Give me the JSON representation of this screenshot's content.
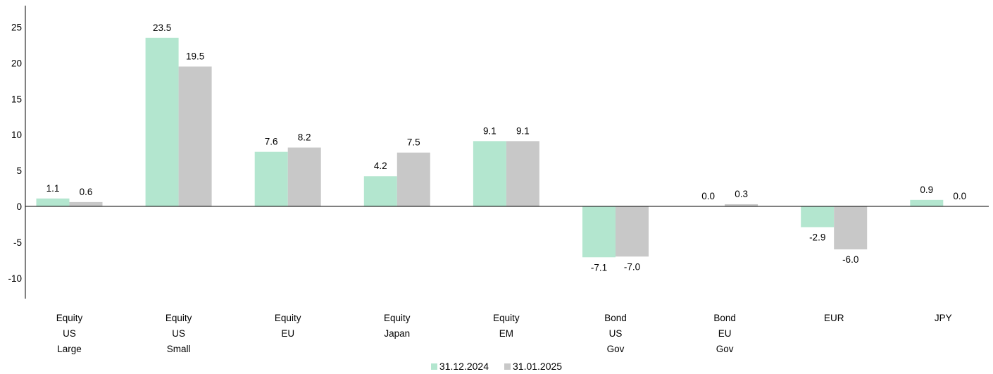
{
  "chart_data": {
    "type": "bar",
    "categories": [
      [
        "Equity",
        "US",
        "Large"
      ],
      [
        "Equity",
        "US",
        "Small"
      ],
      [
        "Equity",
        "EU"
      ],
      [
        "Equity",
        "Japan"
      ],
      [
        "Equity",
        "EM"
      ],
      [
        "Bond",
        "US",
        "Gov"
      ],
      [
        "Bond",
        "EU",
        "Gov"
      ],
      [
        "EUR"
      ],
      [
        "JPY"
      ]
    ],
    "series": [
      {
        "name": "31.12.2024",
        "color": "#b3e6cf",
        "values": [
          1.1,
          23.5,
          7.6,
          4.2,
          9.1,
          -7.1,
          0.0,
          -2.9,
          0.9
        ],
        "labels": [
          "1.1",
          "23.5",
          "7.6",
          "4.2",
          "9.1",
          "-7.1",
          "0.0",
          "-2.9",
          "0.9"
        ]
      },
      {
        "name": "31.01.2025",
        "color": "#c8c8c8",
        "values": [
          0.6,
          19.5,
          8.2,
          7.5,
          9.1,
          -7.0,
          0.3,
          -6.0,
          0.0
        ],
        "labels": [
          "0.6",
          "19.5",
          "8.2",
          "7.5",
          "9.1",
          "-7.0",
          "0.3",
          "-6.0",
          "0.0"
        ]
      }
    ],
    "yticks": [
      25,
      20,
      15,
      10,
      5,
      0,
      -5,
      -10
    ],
    "ylim": [
      -13,
      28
    ],
    "grid": false,
    "legend_position": "bottom-center"
  }
}
